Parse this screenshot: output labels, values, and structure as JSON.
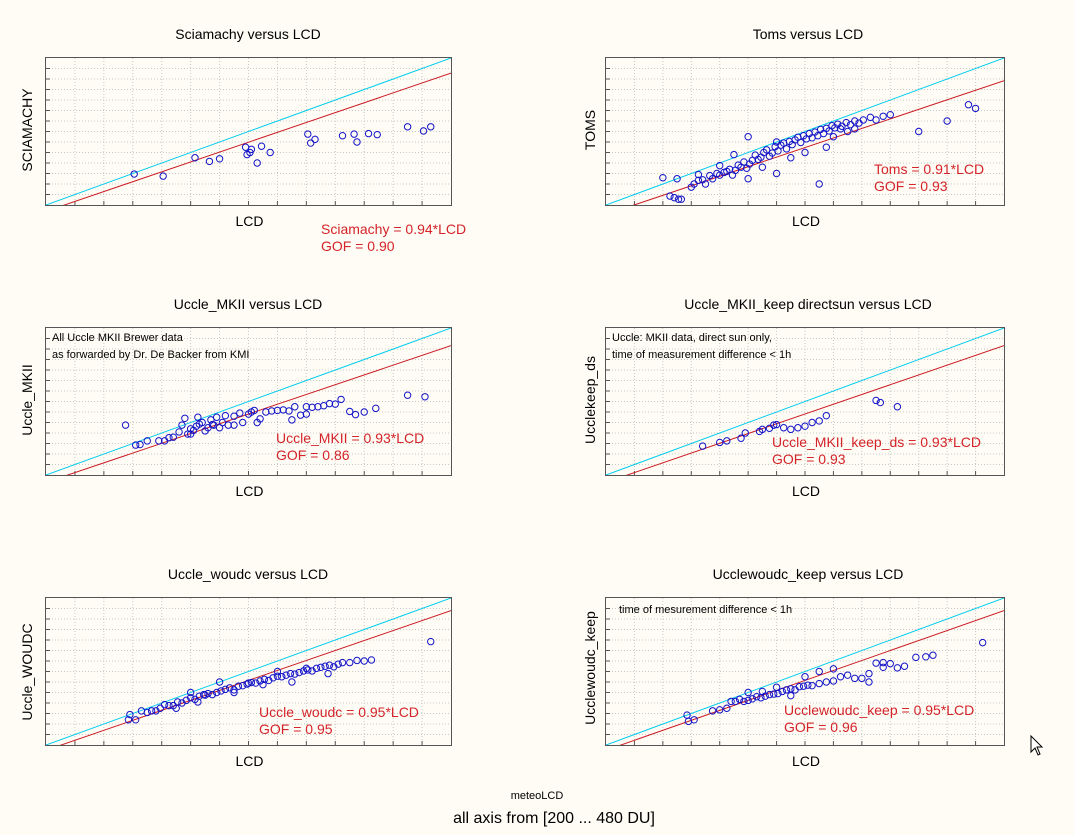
{
  "footer": {
    "sub": "meteoLCD",
    "main": "all axis from [200 ... 480 DU]"
  },
  "colors": {
    "ideal_line": "#00ccee",
    "fit_line": "#cc1c24",
    "points": "#1414c8",
    "equation_text": "#d4242a"
  },
  "chart_data": [
    {
      "type": "scatter",
      "title": "Sciamachy versus LCD",
      "xlabel": "LCD",
      "ylabel": "SCIAMACHY",
      "xlim": [
        200,
        480
      ],
      "ylim": [
        200,
        480
      ],
      "grid": true,
      "fit_slope": 0.94,
      "equation": "Sciamachy = 0.94*LCD",
      "gof": "GOF = 0.90",
      "note": [],
      "points": [
        [
          261,
          259
        ],
        [
          281,
          255
        ],
        [
          303,
          290
        ],
        [
          313,
          283
        ],
        [
          320,
          288
        ],
        [
          338,
          310
        ],
        [
          339,
          296
        ],
        [
          341,
          300
        ],
        [
          342,
          306
        ],
        [
          346,
          280
        ],
        [
          349,
          312
        ],
        [
          355,
          300
        ],
        [
          381,
          335
        ],
        [
          383,
          318
        ],
        [
          386,
          325
        ],
        [
          405,
          332
        ],
        [
          413,
          335
        ],
        [
          415,
          320
        ],
        [
          423,
          336
        ],
        [
          429,
          334
        ],
        [
          450,
          349
        ],
        [
          461,
          341
        ],
        [
          466,
          349
        ]
      ]
    },
    {
      "type": "scatter",
      "title": "Toms versus LCD",
      "xlabel": "LCD",
      "ylabel": "TOMS",
      "xlim": [
        200,
        480
      ],
      "ylim": [
        200,
        480
      ],
      "grid": true,
      "fit_slope": 0.91,
      "equation": "Toms = 0.91*LCD",
      "gof": "GOF = 0.93",
      "note": [],
      "points": [
        [
          240,
          252
        ],
        [
          245,
          217
        ],
        [
          248,
          214
        ],
        [
          251,
          211
        ],
        [
          253,
          211
        ],
        [
          260,
          234
        ],
        [
          262,
          240
        ],
        [
          265,
          247
        ],
        [
          268,
          248
        ],
        [
          270,
          240
        ],
        [
          273,
          256
        ],
        [
          275,
          250
        ],
        [
          278,
          260
        ],
        [
          280,
          257
        ],
        [
          283,
          262
        ],
        [
          285,
          264
        ],
        [
          287,
          268
        ],
        [
          289,
          257
        ],
        [
          291,
          266
        ],
        [
          293,
          276
        ],
        [
          295,
          272
        ],
        [
          297,
          282
        ],
        [
          299,
          270
        ],
        [
          301,
          278
        ],
        [
          303,
          285
        ],
        [
          305,
          295
        ],
        [
          307,
          287
        ],
        [
          309,
          291
        ],
        [
          311,
          300
        ],
        [
          313,
          305
        ],
        [
          315,
          293
        ],
        [
          317,
          299
        ],
        [
          319,
          311
        ],
        [
          321,
          303
        ],
        [
          323,
          314
        ],
        [
          325,
          318
        ],
        [
          327,
          307
        ],
        [
          329,
          321
        ],
        [
          331,
          315
        ],
        [
          333,
          324
        ],
        [
          335,
          329
        ],
        [
          337,
          319
        ],
        [
          339,
          332
        ],
        [
          341,
          326
        ],
        [
          343,
          336
        ],
        [
          345,
          328
        ],
        [
          347,
          339
        ],
        [
          349,
          332
        ],
        [
          351,
          344
        ],
        [
          353,
          336
        ],
        [
          355,
          346
        ],
        [
          357,
          341
        ],
        [
          359,
          351
        ],
        [
          361,
          347
        ],
        [
          363,
          354
        ],
        [
          366,
          350
        ],
        [
          369,
          357
        ],
        [
          372,
          353
        ],
        [
          375,
          360
        ],
        [
          378,
          356
        ],
        [
          381,
          362
        ],
        [
          386,
          367
        ],
        [
          390,
          362
        ],
        [
          395,
          369
        ],
        [
          400,
          372
        ],
        [
          420,
          340
        ],
        [
          350,
          240
        ],
        [
          300,
          330
        ],
        [
          290,
          296
        ],
        [
          310,
          272
        ],
        [
          280,
          275
        ],
        [
          265,
          258
        ],
        [
          320,
          320
        ],
        [
          330,
          290
        ],
        [
          340,
          300
        ],
        [
          355,
          310
        ],
        [
          360,
          330
        ],
        [
          365,
          345
        ],
        [
          370,
          340
        ],
        [
          375,
          345
        ],
        [
          250,
          250
        ],
        [
          320,
          260
        ],
        [
          300,
          250
        ],
        [
          440,
          360
        ],
        [
          455,
          391
        ],
        [
          460,
          384
        ]
      ]
    },
    {
      "type": "scatter",
      "title": "Uccle_MKII versus LCD",
      "xlabel": "LCD",
      "ylabel": "Uccle_MKII",
      "xlim": [
        200,
        480
      ],
      "ylim": [
        200,
        480
      ],
      "grid": true,
      "fit_slope": 0.93,
      "equation": "Uccle_MKII = 0.93*LCD",
      "gof": "GOF = 0.86",
      "note": [
        "All Uccle MKII Brewer data",
        "as forwarded by Dr. De Backer from KMI"
      ],
      "points": [
        [
          255,
          295
        ],
        [
          262,
          257
        ],
        [
          265,
          258
        ],
        [
          270,
          265
        ],
        [
          278,
          265
        ],
        [
          282,
          265
        ],
        [
          285,
          271
        ],
        [
          288,
          272
        ],
        [
          292,
          282
        ],
        [
          294,
          295
        ],
        [
          296,
          308
        ],
        [
          298,
          278
        ],
        [
          300,
          288
        ],
        [
          302,
          285
        ],
        [
          304,
          293
        ],
        [
          306,
          297
        ],
        [
          308,
          300
        ],
        [
          310,
          284
        ],
        [
          312,
          290
        ],
        [
          314,
          305
        ],
        [
          316,
          295
        ],
        [
          318,
          310
        ],
        [
          320,
          290
        ],
        [
          322,
          300
        ],
        [
          324,
          313
        ],
        [
          326,
          295
        ],
        [
          330,
          312
        ],
        [
          334,
          318
        ],
        [
          336,
          300
        ],
        [
          340,
          316
        ],
        [
          342,
          320
        ],
        [
          344,
          323
        ],
        [
          346,
          300
        ],
        [
          348,
          307
        ],
        [
          352,
          320
        ],
        [
          356,
          322
        ],
        [
          360,
          323
        ],
        [
          364,
          324
        ],
        [
          368,
          322
        ],
        [
          372,
          330
        ],
        [
          376,
          314
        ],
        [
          380,
          330
        ],
        [
          384,
          329
        ],
        [
          388,
          330
        ],
        [
          392,
          332
        ],
        [
          396,
          336
        ],
        [
          400,
          335
        ],
        [
          404,
          344
        ],
        [
          410,
          321
        ],
        [
          414,
          315
        ],
        [
          420,
          320
        ],
        [
          428,
          327
        ],
        [
          450,
          352
        ],
        [
          462,
          349
        ],
        [
          330,
          295
        ],
        [
          300,
          278
        ],
        [
          315,
          296
        ],
        [
          305,
          310
        ],
        [
          370,
          305
        ],
        [
          380,
          316
        ]
      ]
    },
    {
      "type": "scatter",
      "title": "Uccle_MKII_keep directsun versus LCD",
      "xlabel": "LCD",
      "ylabel": "Ucclekeep_ds",
      "xlim": [
        200,
        480
      ],
      "ylim": [
        200,
        480
      ],
      "grid": true,
      "fit_slope": 0.93,
      "equation": "Uccle_MKII_keep_ds = 0.93*LCD",
      "gof": "GOF = 0.93",
      "note": [
        "Uccle: MKII data, direct sun only,",
        "time of measurement difference  < 1h"
      ],
      "points": [
        [
          268,
          255
        ],
        [
          280,
          262
        ],
        [
          295,
          270
        ],
        [
          298,
          280
        ],
        [
          308,
          283
        ],
        [
          310,
          287
        ],
        [
          315,
          289
        ],
        [
          318,
          295
        ],
        [
          320,
          296
        ],
        [
          330,
          287
        ],
        [
          335,
          290
        ],
        [
          340,
          293
        ],
        [
          350,
          303
        ],
        [
          355,
          313
        ],
        [
          390,
          342
        ],
        [
          393,
          338
        ],
        [
          405,
          330
        ],
        [
          345,
          300
        ],
        [
          325,
          290
        ],
        [
          285,
          265
        ]
      ]
    },
    {
      "type": "scatter",
      "title": "Uccle_woudc versus LCD",
      "xlabel": "LCD",
      "ylabel": "Uccle_WOUDC",
      "xlim": [
        200,
        480
      ],
      "ylim": [
        200,
        480
      ],
      "grid": true,
      "fit_slope": 0.95,
      "equation": "Uccle_woudc = 0.95*LCD",
      "gof": "GOF = 0.95",
      "note": [],
      "points": [
        [
          257,
          248
        ],
        [
          258,
          258
        ],
        [
          262,
          248
        ],
        [
          266,
          265
        ],
        [
          270,
          262
        ],
        [
          273,
          265
        ],
        [
          276,
          265
        ],
        [
          279,
          270
        ],
        [
          282,
          277
        ],
        [
          285,
          275
        ],
        [
          288,
          275
        ],
        [
          291,
          282
        ],
        [
          294,
          280
        ],
        [
          297,
          285
        ],
        [
          300,
          290
        ],
        [
          303,
          287
        ],
        [
          306,
          293
        ],
        [
          309,
          296
        ],
        [
          312,
          298
        ],
        [
          315,
          296
        ],
        [
          318,
          300
        ],
        [
          321,
          303
        ],
        [
          324,
          306
        ],
        [
          327,
          309
        ],
        [
          330,
          305
        ],
        [
          333,
          312
        ],
        [
          336,
          313
        ],
        [
          339,
          316
        ],
        [
          342,
          319
        ],
        [
          345,
          318
        ],
        [
          348,
          322
        ],
        [
          351,
          325
        ],
        [
          354,
          323
        ],
        [
          357,
          328
        ],
        [
          360,
          331
        ],
        [
          363,
          330
        ],
        [
          366,
          333
        ],
        [
          369,
          336
        ],
        [
          372,
          335
        ],
        [
          375,
          338
        ],
        [
          378,
          341
        ],
        [
          381,
          343
        ],
        [
          384,
          341
        ],
        [
          387,
          346
        ],
        [
          390,
          348
        ],
        [
          393,
          350
        ],
        [
          396,
          352
        ],
        [
          399,
          349
        ],
        [
          402,
          354
        ],
        [
          405,
          357
        ],
        [
          410,
          357
        ],
        [
          415,
          361
        ],
        [
          420,
          360
        ],
        [
          425,
          362
        ],
        [
          466,
          397
        ],
        [
          300,
          300
        ],
        [
          310,
          295
        ],
        [
          320,
          320
        ],
        [
          330,
          300
        ],
        [
          340,
          318
        ],
        [
          350,
          315
        ],
        [
          360,
          340
        ],
        [
          370,
          320
        ],
        [
          380,
          346
        ],
        [
          395,
          336
        ],
        [
          290,
          270
        ],
        [
          305,
          282
        ]
      ]
    },
    {
      "type": "scatter",
      "title": "Ucclewoudc_keep versus LCD",
      "xlabel": "LCD",
      "ylabel": "Ucclewoudc_keep",
      "xlim": [
        200,
        480
      ],
      "ylim": [
        200,
        480
      ],
      "grid": true,
      "fit_slope": 0.95,
      "equation": "Ucclewoudc_keep = 0.95*LCD",
      "gof": "GOF = 0.96",
      "note": [
        "time of mesurement difference < 1h"
      ],
      "points": [
        [
          257,
          257
        ],
        [
          258,
          245
        ],
        [
          262,
          248
        ],
        [
          275,
          265
        ],
        [
          280,
          267
        ],
        [
          285,
          270
        ],
        [
          288,
          283
        ],
        [
          291,
          283
        ],
        [
          294,
          287
        ],
        [
          297,
          283
        ],
        [
          300,
          285
        ],
        [
          303,
          288
        ],
        [
          306,
          292
        ],
        [
          309,
          290
        ],
        [
          312,
          293
        ],
        [
          315,
          296
        ],
        [
          318,
          297
        ],
        [
          321,
          298
        ],
        [
          324,
          302
        ],
        [
          327,
          305
        ],
        [
          330,
          307
        ],
        [
          333,
          305
        ],
        [
          336,
          311
        ],
        [
          339,
          312
        ],
        [
          342,
          314
        ],
        [
          345,
          313
        ],
        [
          350,
          317
        ],
        [
          355,
          320
        ],
        [
          360,
          322
        ],
        [
          365,
          330
        ],
        [
          370,
          333
        ],
        [
          375,
          327
        ],
        [
          380,
          327
        ],
        [
          385,
          336
        ],
        [
          390,
          356
        ],
        [
          395,
          357
        ],
        [
          400,
          355
        ],
        [
          405,
          347
        ],
        [
          410,
          350
        ],
        [
          418,
          367
        ],
        [
          425,
          368
        ],
        [
          430,
          371
        ],
        [
          465,
          395
        ],
        [
          300,
          300
        ],
        [
          310,
          302
        ],
        [
          320,
          310
        ],
        [
          330,
          294
        ],
        [
          340,
          330
        ],
        [
          350,
          340
        ],
        [
          360,
          345
        ],
        [
          385,
          320
        ],
        [
          395,
          348
        ]
      ]
    }
  ]
}
